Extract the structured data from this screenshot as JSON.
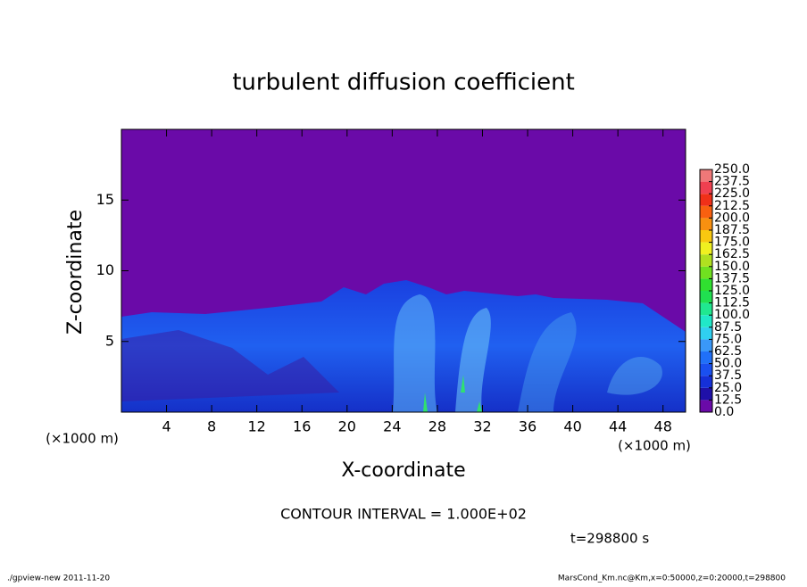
{
  "chart_data": {
    "type": "heatmap",
    "title": "turbulent diffusion coefficient",
    "xlabel": "X-coordinate",
    "ylabel": "Z-coordinate",
    "x_unit_label": "(×1000 m)",
    "xlim": [
      0,
      50
    ],
    "xticks": [
      4,
      8,
      12,
      16,
      20,
      24,
      28,
      32,
      36,
      40,
      44,
      48
    ],
    "ylim": [
      0,
      20
    ],
    "yticks": [
      5,
      10,
      15
    ],
    "colorbar": {
      "levels": [
        {
          "value": 0,
          "label": "0.0"
        },
        12.5,
        {
          "value": 25,
          "label": "25.0"
        },
        37.5,
        {
          "value": 50,
          "label": "50.0"
        },
        62.5,
        {
          "value": 75,
          "label": "75.0"
        },
        87.5,
        {
          "value": 100,
          "label": "100.0"
        },
        112.5,
        {
          "value": 125,
          "label": "125.0"
        },
        137.5,
        {
          "value": 150,
          "label": "150.0"
        },
        162.5,
        {
          "value": 175,
          "label": "175.0"
        },
        187.5,
        {
          "value": 200,
          "label": "200.0"
        },
        212.5,
        {
          "value": 225,
          "label": "225.0"
        },
        237.5,
        {
          "value": 250,
          "label": "250.0"
        }
      ],
      "colors": [
        "#6a0aa8",
        "#1f10a8",
        "#1530d8",
        "#1a50f0",
        "#2070f8",
        "#3a98f8",
        "#30d0f0",
        "#20e8c8",
        "#20e890",
        "#20e050",
        "#30e030",
        "#70e020",
        "#b0e020",
        "#f0f020",
        "#f8c810",
        "#f89010",
        "#f86010",
        "#f03018",
        "#f04050",
        "#f07878"
      ]
    },
    "contour_interval_text": "CONTOUR INTERVAL = 1.000E+02",
    "time_label": "t=298800 s",
    "footer_left": "./gpview-new   2011-11-20",
    "footer_right": "MarsCond_Km.nc@Km,x=0:50000,z=0:20000,t=298800"
  }
}
